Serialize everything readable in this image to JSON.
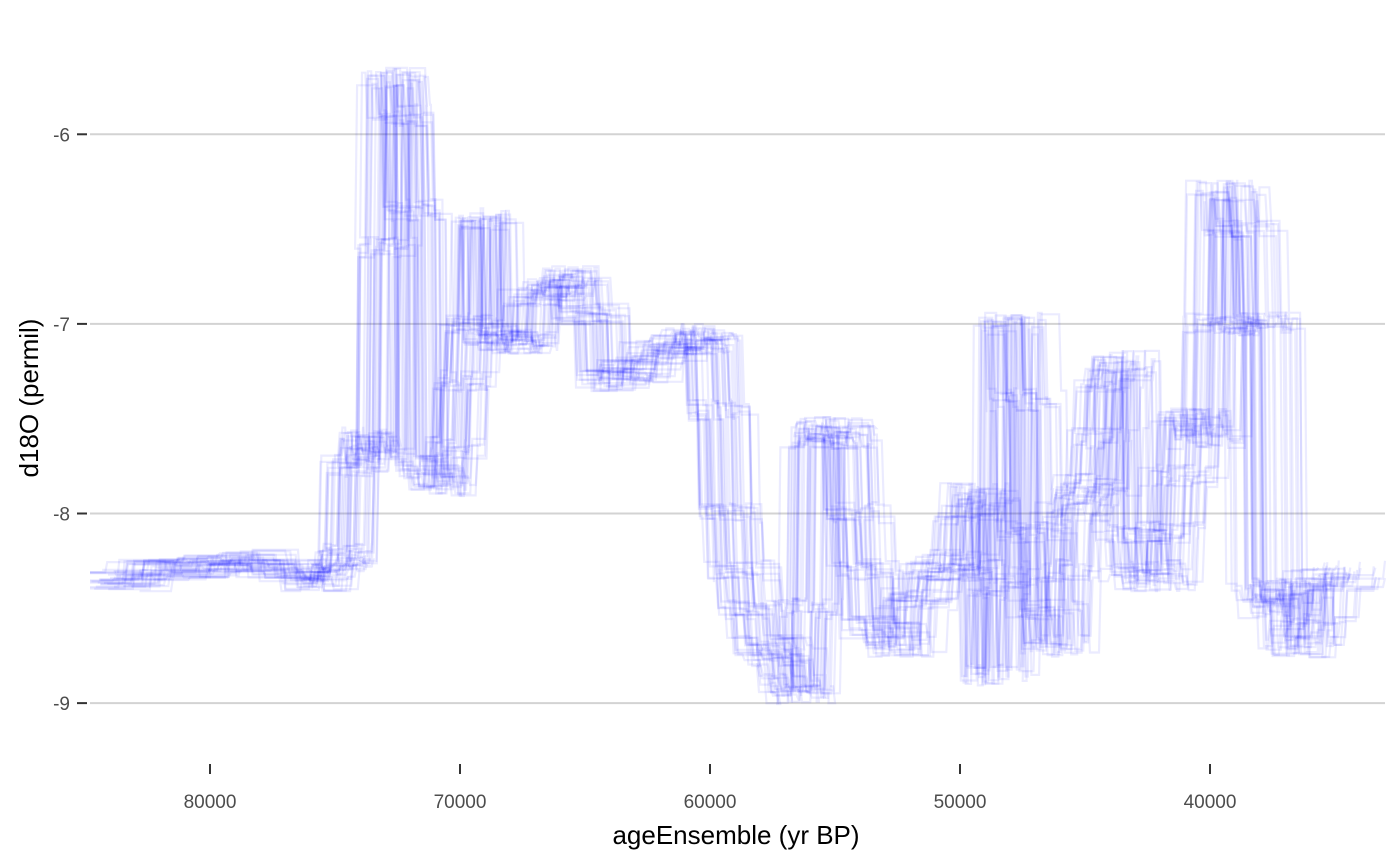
{
  "chart_data": {
    "type": "line",
    "title": "",
    "xlabel": "ageEnsemble (yr BP)",
    "ylabel": "d18O (permil)",
    "x_reversed": true,
    "xlim": [
      84800,
      33000
    ],
    "ylim": [
      -9.3,
      -5.45
    ],
    "x_ticks": [
      80000,
      70000,
      60000,
      50000,
      40000
    ],
    "y_ticks": [
      -9,
      -8,
      -7,
      -6
    ],
    "grid": "horizontal major only",
    "legend": "none",
    "series_color": "#0000ff",
    "series_opacity": 0.08,
    "ensemble_members": 40,
    "median_series": {
      "x": [
        84000,
        82500,
        80500,
        79000,
        77500,
        76000,
        75200,
        74800,
        74500,
        74200,
        73800,
        73300,
        72900,
        72600,
        72300,
        71900,
        71400,
        70800,
        70300,
        69900,
        69600,
        69100,
        68700,
        68100,
        67400,
        67000,
        66300,
        65700,
        65100,
        64300,
        63300,
        62300,
        61300,
        60500,
        60100,
        59700,
        59300,
        58900,
        58400,
        57900,
        57300,
        56700,
        56400,
        56000,
        55700,
        55200,
        54800,
        54300,
        53900,
        53400,
        52700,
        52000,
        51200,
        50300,
        49700,
        49200,
        48900,
        48700,
        48400,
        48000,
        47600,
        47200,
        46700,
        46300,
        45900,
        45500,
        45100,
        44700,
        44300,
        44000,
        43600,
        43200,
        42800,
        42300,
        41800,
        41300,
        40800,
        40300,
        39800,
        39400,
        39000,
        38500,
        38100,
        37700,
        37300,
        36900,
        36500,
        36000,
        35500,
        34500
      ],
      "values": [
        -8.35,
        -8.3,
        -8.28,
        -8.25,
        -8.3,
        -8.35,
        -8.3,
        -8.25,
        -8.22,
        -7.75,
        -7.6,
        -7.7,
        -6.6,
        -5.7,
        -5.9,
        -6.4,
        -7.75,
        -7.85,
        -7.65,
        -7.3,
        -7.0,
        -6.45,
        -7.05,
        -7.1,
        -7.1,
        -6.85,
        -6.8,
        -6.75,
        -6.95,
        -7.3,
        -7.25,
        -7.15,
        -7.1,
        -7.05,
        -7.1,
        -7.45,
        -8.0,
        -8.3,
        -8.5,
        -8.7,
        -8.75,
        -8.9,
        -8.95,
        -8.5,
        -7.6,
        -7.55,
        -7.6,
        -8.0,
        -8.3,
        -8.6,
        -8.7,
        -8.45,
        -8.3,
        -8.25,
        -8.0,
        -7.9,
        -8.3,
        -8.85,
        -8.4,
        -7.0,
        -7.4,
        -8.1,
        -8.5,
        -8.7,
        -8.3,
        -8.0,
        -7.9,
        -7.85,
        -7.6,
        -7.3,
        -7.2,
        -8.1,
        -8.3,
        -8.35,
        -8.1,
        -7.8,
        -7.5,
        -7.6,
        -7.0,
        -6.3,
        -6.5,
        -7.0,
        -7.0,
        -8.4,
        -8.5,
        -8.4,
        -8.7,
        -8.6,
        -8.35,
        -8.3
      ]
    }
  }
}
